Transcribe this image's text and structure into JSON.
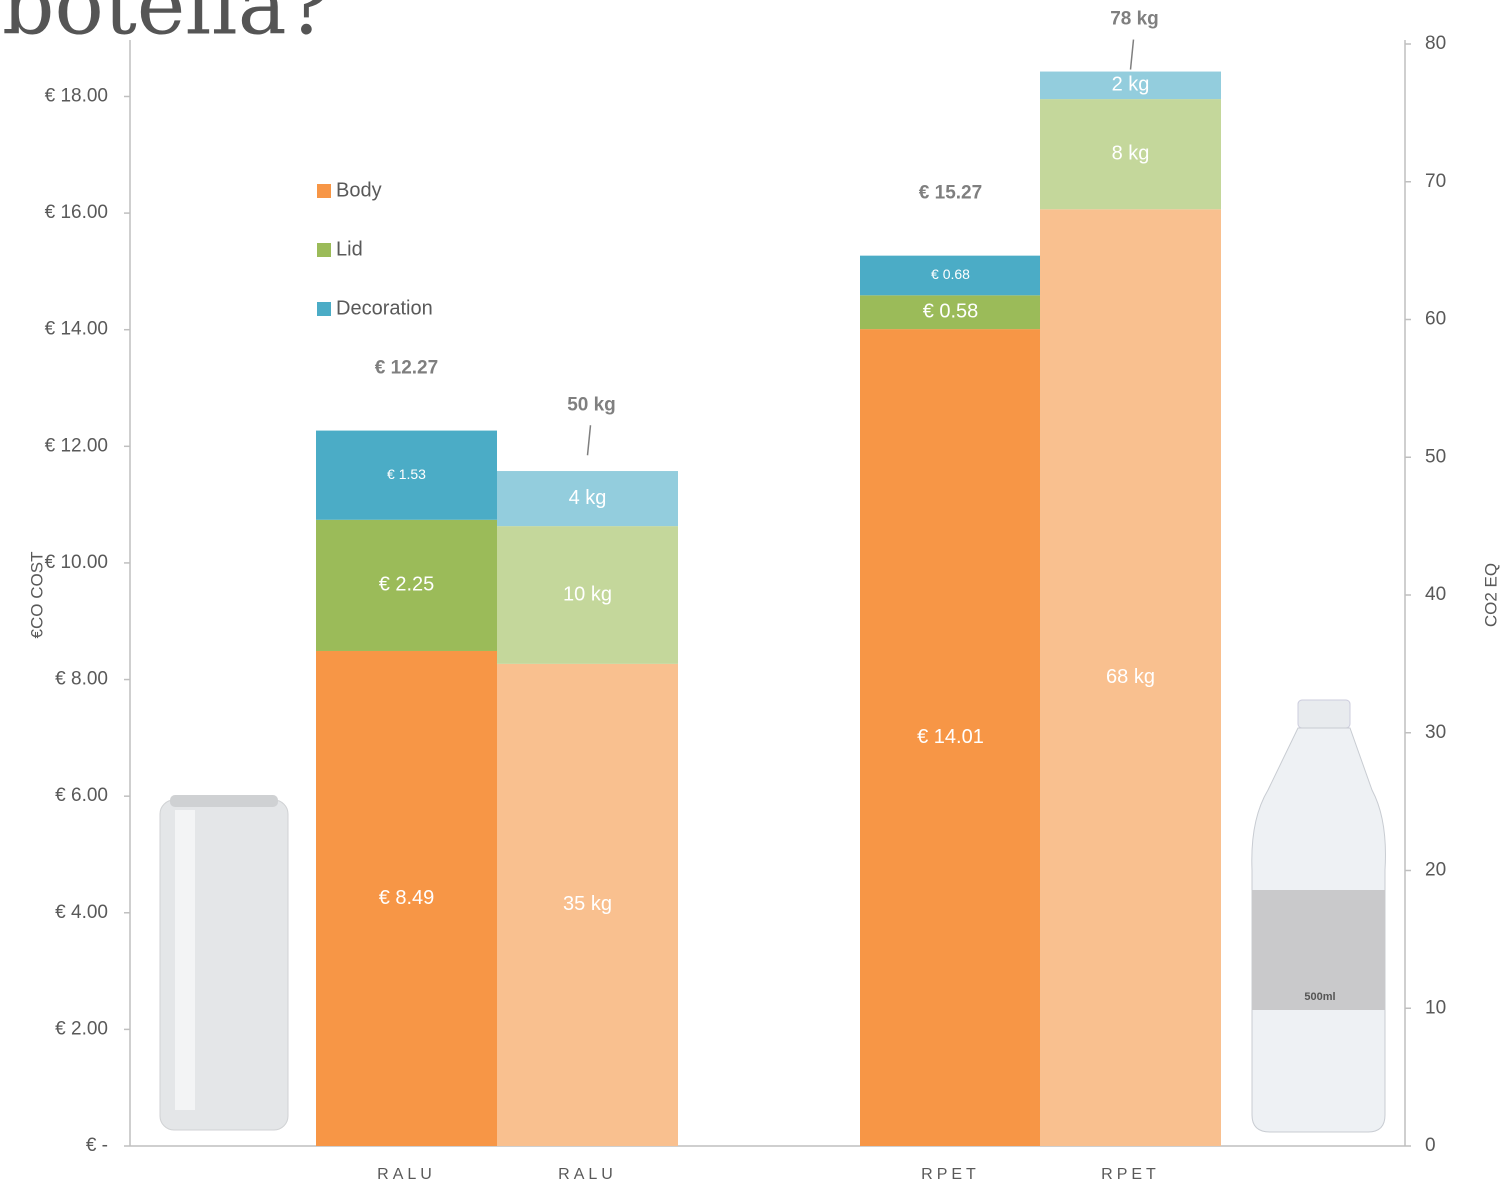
{
  "chart_data": {
    "type": "bar",
    "title": "botella?",
    "y_label": "€CO COST",
    "y2_label": "CO2 EQ",
    "categories": [
      "RALU",
      "RALU",
      "RPET",
      "RPET"
    ],
    "ylim": [
      0,
      18.9
    ],
    "yticks": [
      {
        "value": 0,
        "label": "€ -"
      },
      {
        "value": 2,
        "label": "€ 2.00"
      },
      {
        "value": 4,
        "label": "€ 4.00"
      },
      {
        "value": 6,
        "label": "€ 6.00"
      },
      {
        "value": 8,
        "label": "€ 8.00"
      },
      {
        "value": 10,
        "label": "€ 10.00"
      },
      {
        "value": 12,
        "label": "€ 12.00"
      },
      {
        "value": 14,
        "label": "€ 14.00"
      },
      {
        "value": 16,
        "label": "€ 16.00"
      },
      {
        "value": 18,
        "label": "€ 18.00"
      }
    ],
    "y2lim": [
      0,
      80
    ],
    "y2ticks": [
      0,
      10,
      20,
      30,
      40,
      50,
      60,
      70,
      80
    ],
    "series": [
      {
        "name": "Body",
        "color": "#f79646",
        "values": [
          8.49,
          null,
          14.01,
          null
        ],
        "value_labels": [
          "€ 8.49",
          null,
          "€ 14.01",
          null
        ]
      },
      {
        "name": "Lid",
        "color": "#9bbb59",
        "values": [
          2.25,
          null,
          0.58,
          null
        ],
        "value_labels": [
          "€ 2.25",
          null,
          "€ 0.58",
          null
        ]
      },
      {
        "name": "Decoration",
        "color": "#4bacc6",
        "values": [
          1.53,
          null,
          0.68,
          null
        ],
        "value_labels": [
          "€ 1.53",
          null,
          "€ 0.68",
          null
        ]
      },
      {
        "color": "#f9c08f",
        "axis": "y2",
        "values": [
          null,
          35,
          null,
          68
        ],
        "value_labels": [
          null,
          "35 kg",
          null,
          "68 kg"
        ]
      },
      {
        "color": "#c4d79b",
        "axis": "y2",
        "values": [
          null,
          10,
          null,
          8
        ],
        "value_labels": [
          null,
          "10 kg",
          null,
          "8 kg"
        ]
      },
      {
        "color": "#93cddd",
        "axis": "y2",
        "values": [
          null,
          4,
          null,
          2
        ],
        "value_labels": [
          null,
          "4 kg",
          null,
          "2 kg"
        ]
      }
    ],
    "totals": [
      {
        "value": 12.27,
        "label": "€ 12.27"
      },
      {
        "value": 50,
        "label": "50 kg",
        "axis": "y2"
      },
      {
        "value": 15.27,
        "label": "€ 15.27"
      },
      {
        "value": 78,
        "label": "78 kg",
        "axis": "y2"
      }
    ]
  }
}
